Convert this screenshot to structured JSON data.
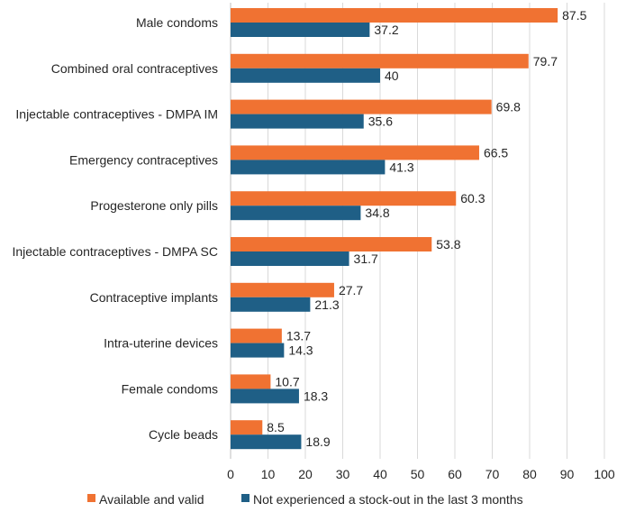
{
  "chart_data": {
    "type": "bar",
    "orientation": "horizontal",
    "title": "",
    "xlabel": "",
    "ylabel": "",
    "xlim": [
      0,
      100
    ],
    "xticks": [
      0,
      10,
      20,
      30,
      40,
      50,
      60,
      70,
      80,
      90,
      100
    ],
    "grid": "vertical",
    "legend_position": "bottom",
    "categories": [
      "Male condoms",
      "Combined oral contraceptives",
      "Injectable contraceptives - DMPA IM",
      "Emergency contraceptives",
      "Progesterone only pills",
      "Injectable contraceptives - DMPA SC",
      "Contraceptive implants",
      "Intra-uterine devices",
      "Female condoms",
      "Cycle beads"
    ],
    "series": [
      {
        "name": "Available and valid",
        "color": "#f07232",
        "values": [
          87.5,
          79.7,
          69.8,
          66.5,
          60.3,
          53.8,
          27.7,
          13.7,
          10.7,
          8.5
        ]
      },
      {
        "name": "Not experienced a stock-out in the last 3 months",
        "color": "#1f5f86",
        "values": [
          37.2,
          40,
          35.6,
          41.3,
          34.8,
          31.7,
          21.3,
          14.3,
          18.3,
          18.9
        ]
      }
    ]
  }
}
